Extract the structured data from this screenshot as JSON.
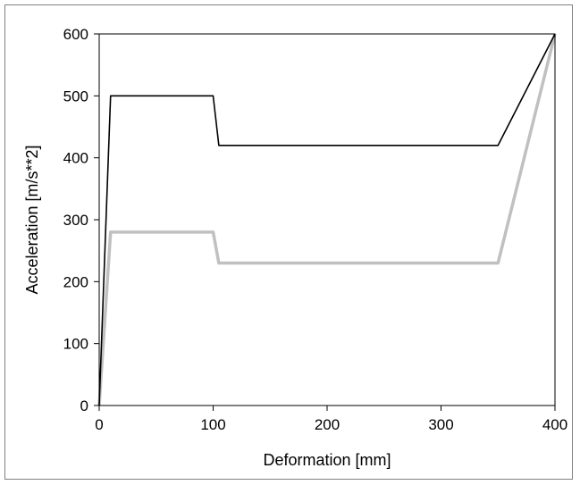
{
  "chart_data": {
    "type": "line",
    "xlabel": "Deformation [mm]",
    "ylabel": "Acceleration [m/s**2]",
    "xlim": [
      0,
      400
    ],
    "ylim": [
      0,
      600
    ],
    "x_ticks": [
      0,
      100,
      200,
      300,
      400
    ],
    "y_ticks": [
      0,
      100,
      200,
      300,
      400,
      500,
      600
    ],
    "x_tick_labels": [
      "0",
      "100",
      "200",
      "300",
      "400"
    ],
    "y_tick_labels": [
      "0",
      "100",
      "200",
      "300",
      "400",
      "500",
      "600"
    ],
    "grid": false,
    "legend": "none",
    "series": [
      {
        "color": "#000000",
        "x": [
          0,
          10,
          100,
          105,
          350,
          400
        ],
        "y": [
          0,
          500,
          500,
          420,
          420,
          600
        ]
      },
      {
        "color": "#c0c0c0",
        "x": [
          0,
          10,
          100,
          105,
          350,
          400
        ],
        "y": [
          0,
          280,
          280,
          230,
          230,
          600
        ]
      }
    ]
  }
}
